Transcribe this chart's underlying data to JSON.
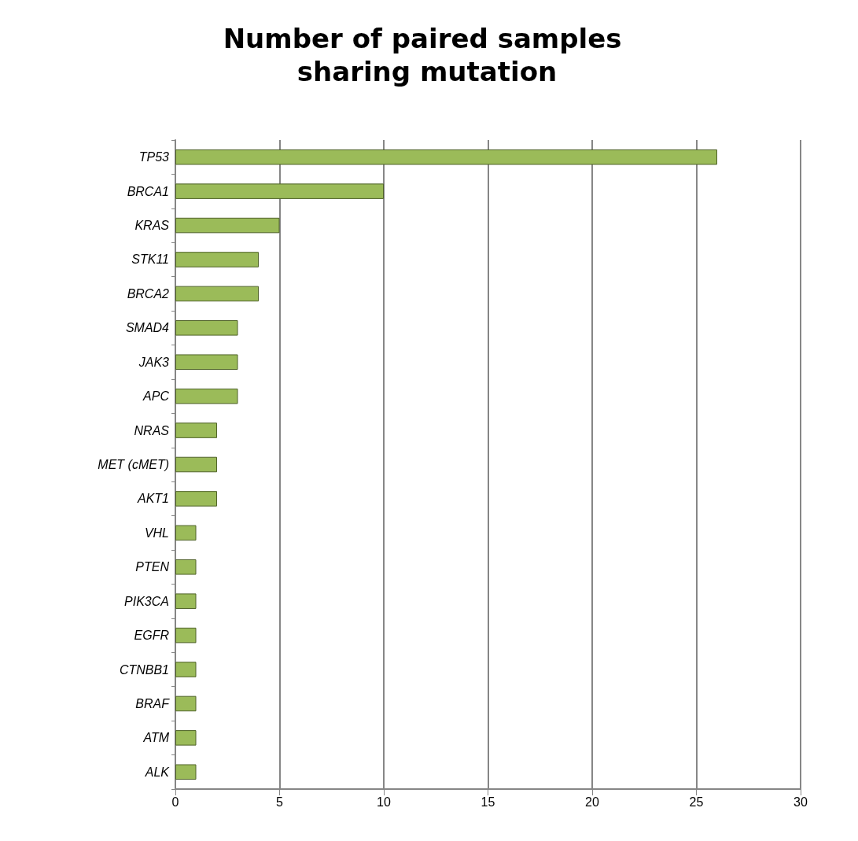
{
  "chart_data": {
    "type": "bar",
    "orientation": "horizontal",
    "title": "Number of paired samples sharing mutation",
    "categories": [
      "TP53",
      "BRCA1",
      "KRAS",
      "STK11",
      "BRCA2",
      "SMAD4",
      "JAK3",
      "APC",
      "NRAS",
      "MET (cMET)",
      "AKT1",
      "VHL",
      "PTEN",
      "PIK3CA",
      "EGFR",
      "CTNBB1",
      "BRAF",
      "ATM",
      "ALK"
    ],
    "values": [
      26,
      10,
      5,
      4,
      4,
      3,
      3,
      3,
      2,
      2,
      2,
      1,
      1,
      1,
      1,
      1,
      1,
      1,
      1
    ],
    "color": "#9bbb59",
    "xlim": [
      0,
      30
    ],
    "xticks": [
      0,
      5,
      10,
      15,
      20,
      25,
      30
    ],
    "grid": "x"
  }
}
